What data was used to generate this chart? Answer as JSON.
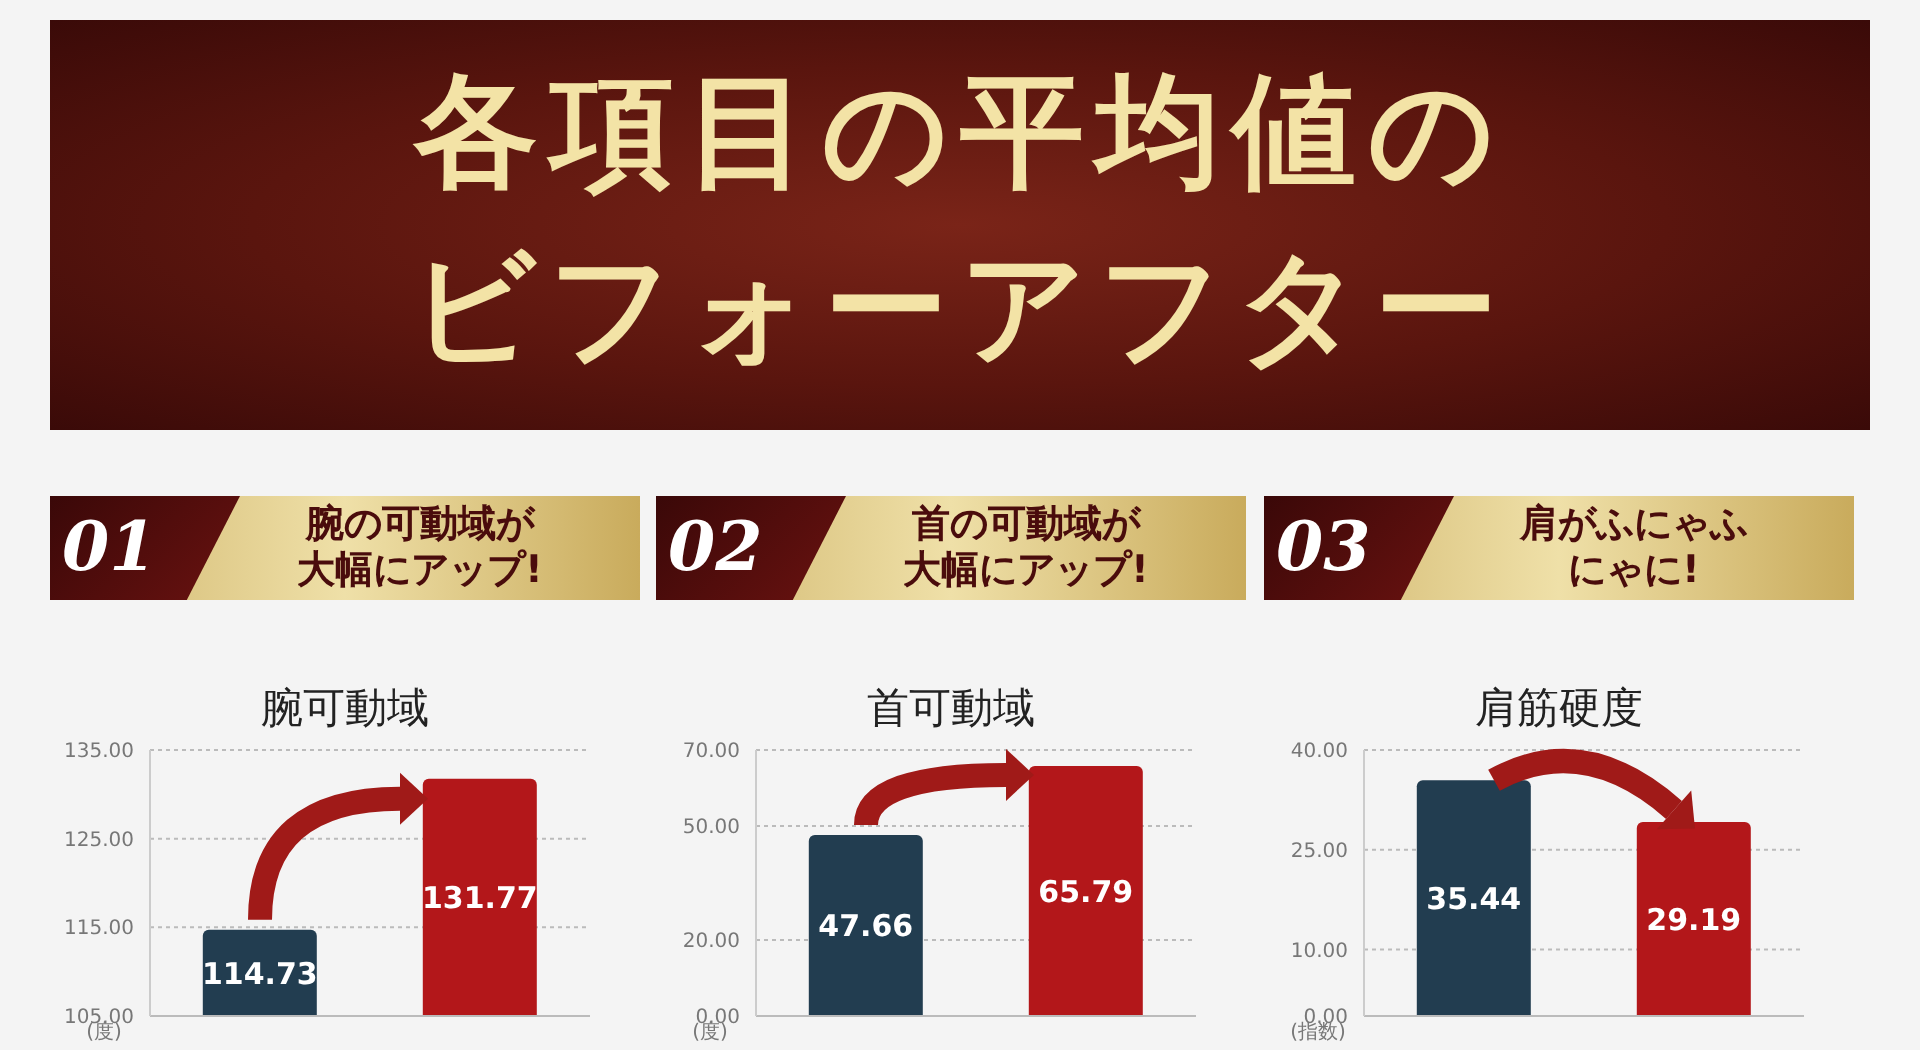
{
  "chart_data": [
    {
      "type": "bar",
      "title": "腕可動域",
      "subtitle": "腕の可動域が大幅にアップ!",
      "ylabel": "(度)",
      "annotations": [
        "01",
        "各項目の平均値のビフォーアフター"
      ],
      "categories": [
        null,
        null
      ],
      "values": [
        114.73,
        131.77
      ],
      "colors": [
        "#223d50",
        "#b3171a"
      ],
      "data_labels": true,
      "grid": "y",
      "ylim": [
        105,
        135
      ],
      "yticks": [
        {
          "value": 105,
          "label": "105.00"
        },
        {
          "value": 115,
          "label": "115.00"
        },
        {
          "value": 125,
          "label": "125.00"
        },
        {
          "value": 135,
          "label": "135.00"
        }
      ]
    },
    {
      "type": "bar",
      "title": "首可動域",
      "subtitle": "首の可動域が大幅にアップ!",
      "ylabel": "(度)",
      "annotations": [
        "02"
      ],
      "categories": [
        null,
        null
      ],
      "values": [
        47.66,
        65.79
      ],
      "colors": [
        "#223d50",
        "#b3171a"
      ],
      "data_labels": true,
      "grid": "y",
      "ylim": [
        0,
        70
      ],
      "yticks": [
        {
          "value": 0,
          "label": "0.00"
        },
        {
          "value": 20,
          "label": "20.00"
        },
        {
          "value": 50,
          "label": "50.00"
        },
        {
          "value": 70,
          "label": "70.00"
        }
      ]
    },
    {
      "type": "bar",
      "title": "肩筋硬度",
      "subtitle": "肩がふにゃふにゃに!",
      "ylabel": "(指数)",
      "annotations": [
        "03"
      ],
      "categories": [
        null,
        null
      ],
      "values": [
        35.44,
        29.19
      ],
      "colors": [
        "#223d50",
        "#b3171a"
      ],
      "data_labels": true,
      "grid": "y",
      "ylim": [
        0,
        40
      ],
      "yticks": [
        {
          "value": 0,
          "label": "0.00"
        },
        {
          "value": 10,
          "label": "10.00"
        },
        {
          "value": 25,
          "label": "25.00"
        },
        {
          "value": 40,
          "label": "40.00"
        }
      ]
    }
  ]
}
